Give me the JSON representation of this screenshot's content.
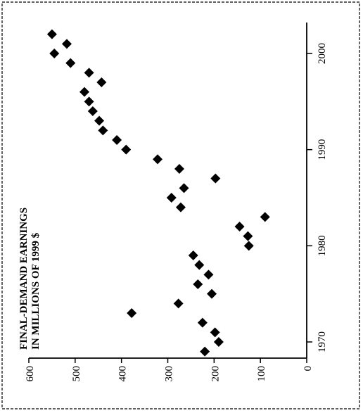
{
  "chart_data": {
    "type": "scatter",
    "title": "FINAL-DEMAND EARNINGS\nIN MILLIONS OF 1999 $",
    "x_axis": {
      "label": "",
      "range": [
        1968,
        2003
      ],
      "ticks": [
        1970,
        1980,
        1990,
        2000
      ]
    },
    "y_axis": {
      "label": "",
      "range": [
        0,
        600
      ],
      "ticks": [
        0,
        100,
        200,
        300,
        400,
        500,
        600
      ]
    },
    "grid": false,
    "marker": "diamond",
    "points": [
      {
        "x": 1969,
        "y": 220
      },
      {
        "x": 1970,
        "y": 190
      },
      {
        "x": 1971,
        "y": 198
      },
      {
        "x": 1972,
        "y": 225
      },
      {
        "x": 1973,
        "y": 378
      },
      {
        "x": 1974,
        "y": 277
      },
      {
        "x": 1975,
        "y": 205
      },
      {
        "x": 1976,
        "y": 235
      },
      {
        "x": 1977,
        "y": 212
      },
      {
        "x": 1978,
        "y": 232
      },
      {
        "x": 1979,
        "y": 245
      },
      {
        "x": 1980,
        "y": 125
      },
      {
        "x": 1981,
        "y": 127
      },
      {
        "x": 1982,
        "y": 145
      },
      {
        "x": 1983,
        "y": 90
      },
      {
        "x": 1984,
        "y": 272
      },
      {
        "x": 1985,
        "y": 292
      },
      {
        "x": 1986,
        "y": 265
      },
      {
        "x": 1987,
        "y": 197
      },
      {
        "x": 1988,
        "y": 275
      },
      {
        "x": 1989,
        "y": 322
      },
      {
        "x": 1990,
        "y": 390
      },
      {
        "x": 1991,
        "y": 410
      },
      {
        "x": 1992,
        "y": 440
      },
      {
        "x": 1993,
        "y": 448
      },
      {
        "x": 1994,
        "y": 462
      },
      {
        "x": 1995,
        "y": 470
      },
      {
        "x": 1996,
        "y": 480
      },
      {
        "x": 1997,
        "y": 443
      },
      {
        "x": 1998,
        "y": 470
      },
      {
        "x": 1999,
        "y": 510
      },
      {
        "x": 2000,
        "y": 545
      },
      {
        "x": 2001,
        "y": 518
      },
      {
        "x": 2002,
        "y": 550
      }
    ]
  }
}
